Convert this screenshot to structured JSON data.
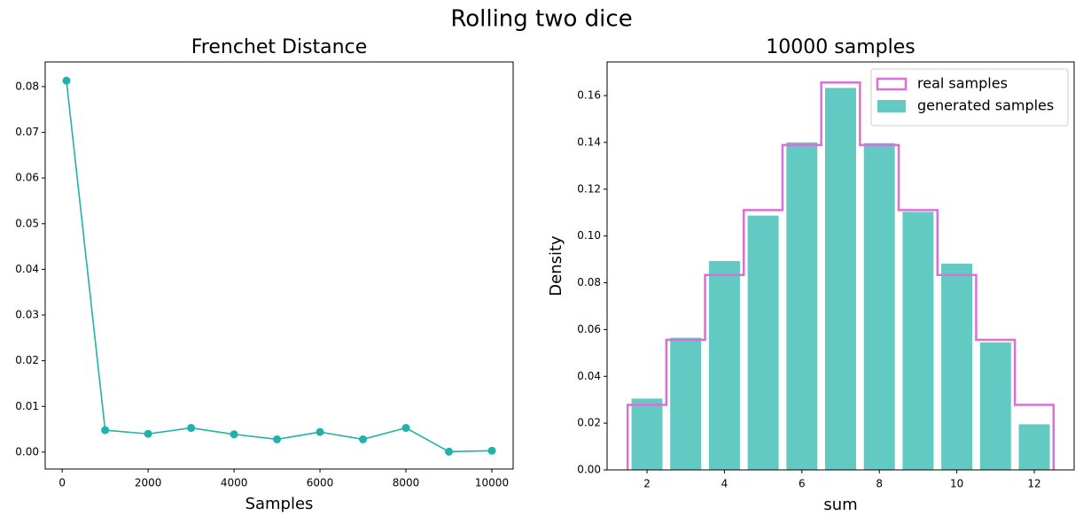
{
  "title": "Rolling two dice",
  "chart_data": [
    {
      "type": "line",
      "title": "Frenchet Distance",
      "xlabel": "Samples",
      "x": [
        100,
        1000,
        2000,
        3000,
        4000,
        5000,
        6000,
        7000,
        8000,
        9000,
        10000
      ],
      "series": [
        {
          "color": "#20b2aa",
          "values": [
            0.0813,
            0.0048,
            0.004,
            0.0053,
            0.0039,
            0.0028,
            0.0044,
            0.0028,
            0.0053,
            0.0001,
            0.0003
          ]
        }
      ],
      "xlim": [
        -395,
        10495
      ],
      "xticks": [
        0,
        2000,
        4000,
        6000,
        8000,
        10000
      ],
      "ylim": [
        -0.0037,
        0.0854
      ],
      "yticks": [
        {
          "value": 0,
          "label": "0.00"
        },
        0.01,
        0.02,
        0.03,
        0.04,
        0.05,
        0.06,
        0.07,
        0.08
      ],
      "grid": false
    },
    {
      "type": "bar",
      "title": "10000 samples",
      "xlabel": "sum",
      "ylabel": "Density",
      "x": [
        2,
        3,
        4,
        5,
        6,
        7,
        8,
        9,
        10,
        11,
        12
      ],
      "series": [
        {
          "name": "real samples",
          "type": "step",
          "color": "#da70d6",
          "values": [
            0.0278,
            0.0556,
            0.0833,
            0.1111,
            0.1389,
            0.1656,
            0.1389,
            0.1111,
            0.0833,
            0.0556,
            0.0278
          ]
        },
        {
          "name": "generated samples",
          "type": "bar",
          "color": "#62c9c3",
          "values": [
            0.0305,
            0.0565,
            0.0893,
            0.1087,
            0.14,
            0.1633,
            0.1397,
            0.1103,
            0.0882,
            0.0545,
            0.0195
          ]
        }
      ],
      "xlim": [
        0.97,
        13.03
      ],
      "xticks": [
        2,
        4,
        6,
        8,
        10,
        12
      ],
      "ylim": [
        0,
        0.1744
      ],
      "yticks": [
        {
          "value": 0,
          "label": "0.00"
        },
        0.02,
        0.04,
        0.06,
        0.08,
        {
          "value": 0.1,
          "label": "0.10"
        },
        0.12,
        0.14,
        0.16
      ],
      "legend": "upper right",
      "grid": false
    }
  ]
}
